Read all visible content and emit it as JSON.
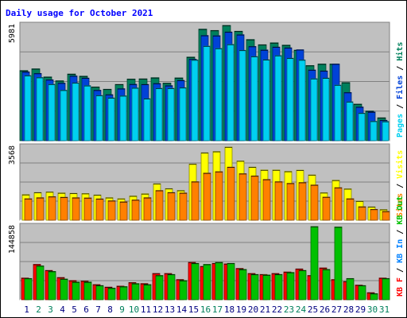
{
  "chart_data": [
    {
      "type": "bar",
      "title": "Daily usage for October 2021",
      "ymax_label": "5981",
      "ylim": [
        0,
        5981
      ],
      "categories": [
        "1",
        "2",
        "3",
        "4",
        "5",
        "6",
        "7",
        "8",
        "9",
        "10",
        "11",
        "12",
        "13",
        "14",
        "15",
        "16",
        "17",
        "18",
        "19",
        "20",
        "21",
        "22",
        "23",
        "24",
        "25",
        "26",
        "27",
        "28",
        "29",
        "30",
        "31"
      ],
      "weekend_days": [
        "2",
        "3",
        "9",
        "10",
        "16",
        "17",
        "23",
        "24",
        "30",
        "31"
      ],
      "series": [
        {
          "name": "Hits",
          "color": "#00805c",
          "values": [
            3640,
            3730,
            3310,
            3110,
            3460,
            3350,
            2790,
            2670,
            2920,
            3200,
            3210,
            3270,
            2990,
            3260,
            4340,
            5790,
            5720,
            5981,
            5680,
            5250,
            4980,
            5080,
            4960,
            4700,
            3900,
            3980,
            3980,
            3020,
            1900,
            1540,
            1190
          ]
        },
        {
          "name": "Files",
          "color": "#0042d8",
          "values": [
            3570,
            3490,
            3160,
            2990,
            3360,
            3250,
            2620,
            2390,
            2700,
            2930,
            2920,
            2970,
            2860,
            3130,
            4230,
            5460,
            5450,
            5640,
            5500,
            4890,
            4710,
            4860,
            4820,
            4720,
            3670,
            3620,
            3980,
            2500,
            1750,
            1490,
            1060
          ]
        },
        {
          "name": "Pages",
          "color": "#00d0f0",
          "values": [
            3380,
            3280,
            2930,
            2620,
            3000,
            2860,
            2350,
            2220,
            2330,
            2740,
            2180,
            2720,
            2720,
            2750,
            4190,
            4910,
            4790,
            5000,
            4690,
            4370,
            4200,
            4420,
            4280,
            4190,
            3220,
            3250,
            2890,
            2020,
            1430,
            1010,
            1000
          ]
        }
      ]
    },
    {
      "type": "bar",
      "ymax_label": "3568",
      "ylim": [
        0,
        3568
      ],
      "series": [
        {
          "name": "Visits",
          "color": "#ffff00",
          "values": [
            1250,
            1350,
            1380,
            1330,
            1310,
            1300,
            1230,
            1100,
            1050,
            1180,
            1290,
            1780,
            1540,
            1450,
            2740,
            3290,
            3350,
            3568,
            2890,
            2590,
            2450,
            2450,
            2380,
            2440,
            2210,
            1340,
            1950,
            1530,
            930,
            650,
            520
          ]
        },
        {
          "name": "Sites",
          "color": "#ff8000",
          "values": [
            1050,
            1100,
            1150,
            1120,
            1100,
            1090,
            1040,
            950,
            900,
            990,
            1100,
            1450,
            1350,
            1330,
            1880,
            2300,
            2370,
            2590,
            2270,
            2160,
            1990,
            1880,
            1800,
            1840,
            1720,
            1130,
            1590,
            1050,
            660,
            530,
            430
          ]
        }
      ]
    },
    {
      "type": "bar",
      "ymax_label": "144858",
      "ylim": [
        0,
        144858
      ],
      "series": [
        {
          "name": "KB F",
          "color": "#ff0000",
          "values": [
            43000,
            70000,
            58000,
            44000,
            38000,
            37000,
            30000,
            25000,
            27000,
            34000,
            32000,
            52000,
            52000,
            40000,
            74000,
            66000,
            72000,
            71000,
            62000,
            52000,
            50000,
            52000,
            55000,
            61000,
            48000,
            63000,
            40000,
            36000,
            29000,
            14000,
            43000
          ]
        },
        {
          "name": "KB In",
          "color": "#0080ff",
          "values": []
        },
        {
          "name": "KB Out",
          "color": "#00c000",
          "values": [
            42000,
            67000,
            56000,
            41000,
            35000,
            35000,
            28000,
            23000,
            26000,
            32000,
            30000,
            48000,
            50000,
            38000,
            72000,
            70000,
            74000,
            72000,
            60000,
            50000,
            49000,
            50000,
            54000,
            58000,
            144858,
            60000,
            144000,
            42000,
            28000,
            12000,
            42000
          ]
        }
      ]
    }
  ],
  "legend_vertical": {
    "panel1": [
      "Pages",
      "Files",
      "Hits"
    ],
    "panel2": [
      "Sites",
      "Visits"
    ],
    "panel3": [
      "KB F",
      "KB In",
      "KB Out"
    ],
    "sep": " / "
  },
  "colors": {
    "background": "#ffffff",
    "plot_bg": "#c0c0c0",
    "title": "#0000ff",
    "weekday_label": "#000080",
    "weekend_label": "#00805c",
    "grid": "#808080"
  }
}
